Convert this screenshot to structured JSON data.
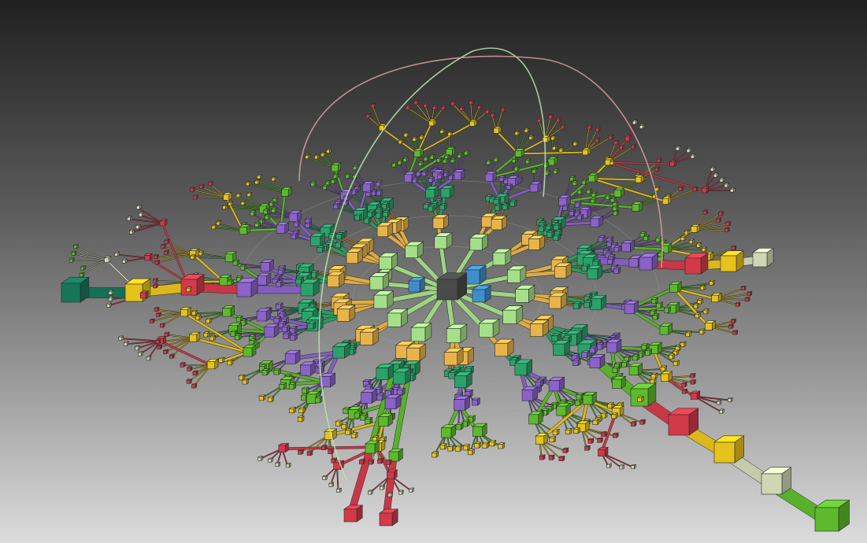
{
  "scene": {
    "background": {
      "top": "#202020",
      "bottom": "#dcdcdc"
    },
    "palette": {
      "root": "#4a4a4a",
      "blue": "#3e8ecb",
      "lightgreen": "#a6df8a",
      "orange": "#e8b44a",
      "teal": "#2aa36a",
      "purple": "#8a62c8",
      "green": "#5dba2c",
      "yellow": "#e6c21c",
      "red": "#d23a4a",
      "cream": "#cfd6b4",
      "darkteal": "#17765a",
      "edge": "#2a2a2a"
    },
    "arcs": [
      {
        "name": "arc-green",
        "color": "#b8e6a8"
      },
      {
        "name": "arc-pink",
        "color": "#d9a0a0"
      }
    ]
  }
}
